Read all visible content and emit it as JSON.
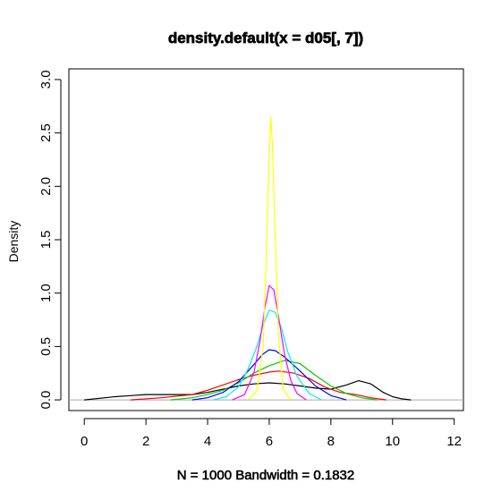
{
  "chart_data": {
    "type": "line",
    "title": "density.default(x = d05[, 7])",
    "xlabel": "N = 1000   Bandwidth = 0.1832",
    "ylabel": "Density",
    "xlim": [
      -0.5,
      12.3
    ],
    "ylim": [
      -0.1,
      3.1
    ],
    "x_ticks": [
      "0",
      "2",
      "4",
      "6",
      "8",
      "10",
      "12"
    ],
    "y_ticks": [
      "0.0",
      "0.5",
      "1.0",
      "1.5",
      "2.0",
      "2.5",
      "3.0"
    ],
    "grid": false,
    "legend": "none",
    "baseline": 0,
    "series": [
      {
        "color": "#000000",
        "x": [
          0,
          1,
          1.5,
          2,
          3,
          3.5,
          4,
          4.5,
          5,
          5.5,
          6,
          6.5,
          7,
          7.5,
          8,
          8.5,
          8.9,
          9.3,
          9.7,
          10,
          10.3,
          10.6
        ],
        "y": [
          0,
          0.03,
          0.04,
          0.05,
          0.05,
          0.05,
          0.07,
          0.1,
          0.13,
          0.15,
          0.16,
          0.15,
          0.13,
          0.11,
          0.1,
          0.14,
          0.18,
          0.15,
          0.07,
          0.03,
          0.01,
          0
        ]
      },
      {
        "color": "#ff0000",
        "x": [
          1.5,
          2.5,
          3.5,
          4,
          4.5,
          5,
          5.5,
          6,
          6.3,
          6.8,
          7.3,
          7.8,
          8.3,
          8.8,
          9.3,
          9.8
        ],
        "y": [
          0,
          0.02,
          0.05,
          0.09,
          0.14,
          0.19,
          0.23,
          0.26,
          0.27,
          0.25,
          0.2,
          0.12,
          0.07,
          0.05,
          0.02,
          0
        ]
      },
      {
        "color": "#00cc00",
        "x": [
          2.8,
          3.5,
          4,
          4.5,
          5,
          5.5,
          6,
          6.5,
          7,
          7.5,
          8,
          8.5,
          9,
          9.5
        ],
        "y": [
          0,
          0.02,
          0.05,
          0.09,
          0.16,
          0.25,
          0.32,
          0.37,
          0.34,
          0.23,
          0.13,
          0.06,
          0.02,
          0
        ]
      },
      {
        "color": "#0000ff",
        "x": [
          3.5,
          4,
          4.5,
          5,
          5.5,
          5.8,
          6,
          6.2,
          6.5,
          7,
          7.5,
          8,
          8.5
        ],
        "y": [
          0,
          0.02,
          0.07,
          0.17,
          0.33,
          0.43,
          0.47,
          0.46,
          0.4,
          0.27,
          0.13,
          0.04,
          0
        ]
      },
      {
        "color": "#00eeee",
        "x": [
          4.2,
          4.6,
          5,
          5.3,
          5.6,
          5.8,
          6,
          6.2,
          6.4,
          6.6,
          6.9,
          7.3,
          7.7
        ],
        "y": [
          0,
          0.03,
          0.12,
          0.28,
          0.5,
          0.7,
          0.84,
          0.82,
          0.67,
          0.45,
          0.22,
          0.06,
          0
        ]
      },
      {
        "color": "#ff00ff",
        "x": [
          4.8,
          5.2,
          5.5,
          5.7,
          5.85,
          6,
          6.15,
          6.3,
          6.5,
          6.7,
          6.9,
          7.2
        ],
        "y": [
          0,
          0.05,
          0.25,
          0.55,
          0.85,
          1.07,
          1.03,
          0.78,
          0.42,
          0.18,
          0.06,
          0
        ]
      },
      {
        "color": "#ffff00",
        "x": [
          5.3,
          5.6,
          5.8,
          5.9,
          6,
          6.05,
          6.1,
          6.2,
          6.3,
          6.45,
          6.7
        ],
        "y": [
          0,
          0.08,
          0.5,
          1.3,
          2.3,
          2.65,
          2.4,
          1.5,
          0.6,
          0.1,
          0
        ]
      }
    ]
  }
}
